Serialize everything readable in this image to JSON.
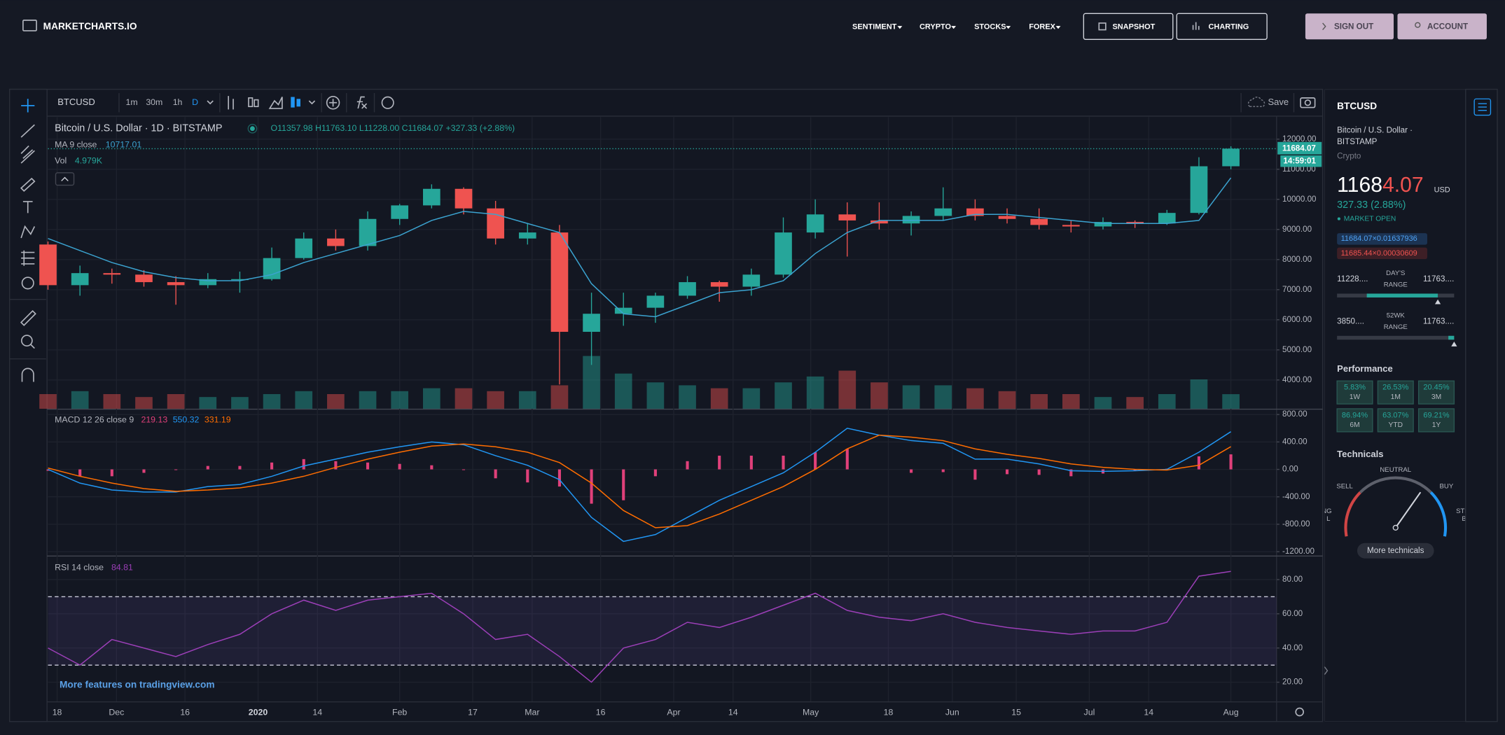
{
  "header": {
    "logo": "MARKETCHARTS.IO",
    "nav": [
      "SENTIMENT",
      "CRYPTO",
      "STOCKS",
      "FOREX"
    ],
    "buttons": [
      "SNAPSHOT",
      "CHARTING",
      "SIGN OUT",
      "ACCOUNT"
    ]
  },
  "toolbar": {
    "symbol": "BTCUSD",
    "intervals": [
      "1m",
      "30m",
      "1h",
      "D"
    ],
    "save": "Save"
  },
  "footer_link": "More features on tradingview.com",
  "chart_data": [
    {
      "type": "candlestick",
      "title": "Bitcoin / U.S. Dollar · 1D · BITSTAMP",
      "ohlc_label": "O11357.98 H11763.10 L11228.00 C11684.07 +327.33 (+2.88%)",
      "countdown": "14:59:01",
      "x": [
        "2019-11-16",
        "2019-11-23",
        "2019-11-30",
        "2019-12-07",
        "2019-12-14",
        "2019-12-21",
        "2019-12-28",
        "2020-01-04",
        "2020-01-11",
        "2020-01-18",
        "2020-01-25",
        "2020-02-01",
        "2020-02-08",
        "2020-02-15",
        "2020-02-22",
        "2020-02-29",
        "2020-03-07",
        "2020-03-14",
        "2020-03-21",
        "2020-03-28",
        "2020-04-04",
        "2020-04-11",
        "2020-04-18",
        "2020-04-25",
        "2020-05-02",
        "2020-05-09",
        "2020-05-16",
        "2020-05-23",
        "2020-05-30",
        "2020-06-06",
        "2020-06-13",
        "2020-06-20",
        "2020-06-27",
        "2020-07-04",
        "2020-07-11",
        "2020-07-18",
        "2020-07-25",
        "2020-08-01"
      ],
      "open": [
        8500,
        7150,
        7550,
        7500,
        7250,
        7150,
        7350,
        7350,
        8050,
        8700,
        8450,
        9350,
        9800,
        10350,
        9700,
        8700,
        8900,
        5600,
        6200,
        6400,
        6800,
        7250,
        7100,
        7500,
        8900,
        9500,
        9300,
        9200,
        9450,
        9700,
        9450,
        9350,
        9150,
        9100,
        9250,
        9200,
        9550,
        11100
      ],
      "high": [
        8600,
        7800,
        7700,
        7650,
        7450,
        7550,
        7600,
        8400,
        8900,
        9000,
        9600,
        9850,
        10500,
        10400,
        9950,
        9200,
        9150,
        6900,
        6900,
        6900,
        7450,
        7300,
        7700,
        9400,
        10000,
        9900,
        9900,
        9600,
        10400,
        10000,
        9700,
        9700,
        9300,
        9400,
        9300,
        9650,
        11400,
        11763.1
      ],
      "low": [
        7000,
        6800,
        7200,
        7100,
        6500,
        7050,
        6900,
        7300,
        8000,
        8300,
        8300,
        9150,
        9700,
        9500,
        8500,
        8500,
        3850,
        4500,
        5800,
        5900,
        6700,
        6600,
        6800,
        7400,
        8700,
        8100,
        9000,
        8800,
        9300,
        9300,
        9200,
        9000,
        8900,
        9000,
        9050,
        9150,
        9500,
        11000
      ],
      "close": [
        7150,
        7550,
        7500,
        7250,
        7150,
        7350,
        7350,
        8050,
        8700,
        8450,
        9350,
        9800,
        10350,
        9700,
        8700,
        8900,
        5600,
        6200,
        6400,
        6800,
        7250,
        7100,
        7500,
        8900,
        9500,
        9300,
        9200,
        9450,
        9700,
        9450,
        9350,
        9150,
        9100,
        9250,
        9200,
        9550,
        11100,
        11684.07
      ],
      "up_color": "#26a69a",
      "down_color": "#ef5350",
      "series": [
        {
          "name": "MA 9 close",
          "color": "#3ba3d0",
          "values": [
            8700,
            8300,
            7900,
            7600,
            7400,
            7300,
            7300,
            7500,
            7900,
            8200,
            8500,
            8800,
            9300,
            9600,
            9500,
            9200,
            8900,
            7200,
            6200,
            6100,
            6500,
            6900,
            7000,
            7300,
            8200,
            8900,
            9300,
            9300,
            9300,
            9500,
            9500,
            9400,
            9300,
            9200,
            9200,
            9200,
            9300,
            10717.01
          ]
        },
        {
          "name": "Vol",
          "values": [
            5,
            6,
            5,
            4,
            5,
            4,
            4,
            5,
            6,
            5,
            6,
            6,
            7,
            7,
            6,
            6,
            8,
            18,
            12,
            9,
            8,
            7,
            7,
            9,
            11,
            13,
            9,
            8,
            8,
            7,
            6,
            5,
            5,
            4,
            4,
            5,
            10,
            4.979
          ],
          "last_label": "4.979K"
        }
      ],
      "xlim": [
        "2019-11-16",
        "2020-08-11"
      ],
      "ylim": [
        3044,
        12733
      ],
      "yticks": [
        {
          "value": 4000,
          "label": "4000.00"
        },
        {
          "value": 5000,
          "label": "5000.00"
        },
        {
          "value": 6000,
          "label": "6000.00"
        },
        {
          "value": 7000,
          "label": "7000.00"
        },
        {
          "value": 8000,
          "label": "8000.00"
        },
        {
          "value": 9000,
          "label": "9000.00"
        },
        {
          "value": 10000,
          "label": "10000.00"
        },
        {
          "value": 11000,
          "label": "11000.00"
        },
        {
          "value": 12000,
          "label": "12000.00"
        }
      ],
      "xticks": [
        {
          "value": "2019-11-18",
          "label": "18"
        },
        {
          "value": "2019-12-01",
          "label": "Dec"
        },
        {
          "value": "2019-12-16",
          "label": "16"
        },
        {
          "value": "2020-01-01",
          "label": "2020"
        },
        {
          "value": "2020-01-14",
          "label": "14"
        },
        {
          "value": "2020-02-01",
          "label": "Feb"
        },
        {
          "value": "2020-02-17",
          "label": "17"
        },
        {
          "value": "2020-03-01",
          "label": "Mar"
        },
        {
          "value": "2020-03-16",
          "label": "16"
        },
        {
          "value": "2020-04-01",
          "label": "Apr"
        },
        {
          "value": "2020-04-14",
          "label": "14"
        },
        {
          "value": "2020-05-01",
          "label": "May"
        },
        {
          "value": "2020-05-18",
          "label": "18"
        },
        {
          "value": "2020-06-01",
          "label": "Jun"
        },
        {
          "value": "2020-06-15",
          "label": "15"
        },
        {
          "value": "2020-07-01",
          "label": "Jul"
        },
        {
          "value": "2020-07-14",
          "label": "14"
        },
        {
          "value": "2020-08-01",
          "label": "Aug"
        }
      ],
      "grid": true
    },
    {
      "type": "macd",
      "title": "MACD 12 26 close 9",
      "x": [
        "2019-11-16",
        "2019-11-23",
        "2019-11-30",
        "2019-12-07",
        "2019-12-14",
        "2019-12-21",
        "2019-12-28",
        "2020-01-04",
        "2020-01-11",
        "2020-01-18",
        "2020-01-25",
        "2020-02-01",
        "2020-02-08",
        "2020-02-15",
        "2020-02-22",
        "2020-02-29",
        "2020-03-07",
        "2020-03-14",
        "2020-03-21",
        "2020-03-28",
        "2020-04-04",
        "2020-04-11",
        "2020-04-18",
        "2020-04-25",
        "2020-05-02",
        "2020-05-09",
        "2020-05-16",
        "2020-05-23",
        "2020-05-30",
        "2020-06-06",
        "2020-06-13",
        "2020-06-20",
        "2020-06-27",
        "2020-07-04",
        "2020-07-11",
        "2020-07-18",
        "2020-07-25",
        "2020-08-01"
      ],
      "series": [
        {
          "color": "#e0407a",
          "values": [
            -20,
            -100,
            -100,
            -50,
            -10,
            50,
            50,
            100,
            150,
            120,
            100,
            80,
            60,
            -10,
            -130,
            -190,
            -250,
            -500,
            -450,
            -100,
            120,
            200,
            200,
            200,
            250,
            300,
            0,
            -50,
            -40,
            -150,
            -70,
            -80,
            -100,
            -60,
            -20,
            10,
            190,
            219.13
          ]
        },
        {
          "color": "#2196f3",
          "values": [
            0,
            -200,
            -300,
            -330,
            -330,
            -250,
            -220,
            -100,
            50,
            150,
            250,
            330,
            400,
            360,
            200,
            60,
            -150,
            -700,
            -1050,
            -950,
            -700,
            -450,
            -250,
            -50,
            250,
            600,
            500,
            420,
            380,
            150,
            150,
            80,
            -20,
            -30,
            -20,
            0,
            250,
            550.32
          ]
        },
        {
          "color": "#ff6d00",
          "values": [
            20,
            -100,
            -200,
            -280,
            -320,
            -300,
            -270,
            -200,
            -100,
            30,
            150,
            250,
            340,
            370,
            330,
            250,
            100,
            -200,
            -600,
            -850,
            -820,
            -650,
            -450,
            -250,
            0,
            300,
            500,
            470,
            420,
            300,
            220,
            160,
            80,
            30,
            0,
            -10,
            60,
            331.19
          ]
        }
      ],
      "xlim": [
        "2019-11-16",
        "2020-08-11"
      ],
      "ylim": [
        -1256,
        870
      ],
      "yticks": [
        {
          "value": -1200,
          "label": "-1200.00"
        },
        {
          "value": -800,
          "label": "-800.00"
        },
        {
          "value": -400,
          "label": "-400.00"
        },
        {
          "value": 0,
          "label": "0.00"
        },
        {
          "value": 400,
          "label": "400.00"
        },
        {
          "value": 800,
          "label": "800.00"
        }
      ],
      "grid": true
    },
    {
      "type": "rsi",
      "title": "RSI 14 close",
      "x": [
        "2019-11-16",
        "2019-11-23",
        "2019-11-30",
        "2019-12-07",
        "2019-12-14",
        "2019-12-21",
        "2019-12-28",
        "2020-01-04",
        "2020-01-11",
        "2020-01-18",
        "2020-01-25",
        "2020-02-01",
        "2020-02-08",
        "2020-02-15",
        "2020-02-22",
        "2020-02-29",
        "2020-03-07",
        "2020-03-14",
        "2020-03-21",
        "2020-03-28",
        "2020-04-04",
        "2020-04-11",
        "2020-04-18",
        "2020-04-25",
        "2020-05-02",
        "2020-05-09",
        "2020-05-16",
        "2020-05-23",
        "2020-05-30",
        "2020-06-06",
        "2020-06-13",
        "2020-06-20",
        "2020-06-27",
        "2020-07-04",
        "2020-07-11",
        "2020-07-18",
        "2020-07-25",
        "2020-08-01"
      ],
      "values": [
        40,
        30,
        45,
        40,
        35,
        42,
        48,
        60,
        68,
        62,
        68,
        70,
        72,
        60,
        45,
        48,
        35,
        20,
        40,
        45,
        55,
        52,
        58,
        65,
        72,
        62,
        58,
        56,
        60,
        55,
        52,
        50,
        48,
        50,
        50,
        55,
        82,
        84.81
      ],
      "color": "#9c3fb8",
      "bands": [
        30,
        70
      ],
      "xlim": [
        "2019-11-16",
        "2020-08-11"
      ],
      "ylim": [
        8.8,
        93.5
      ],
      "yticks": [
        {
          "value": 20,
          "label": "20.00"
        },
        {
          "value": 40,
          "label": "40.00"
        },
        {
          "value": 60,
          "label": "60.00"
        },
        {
          "value": 80,
          "label": "80.00"
        }
      ],
      "grid": true
    }
  ],
  "sidebar": {
    "symbol": "BTCUSD",
    "name": [
      "Bitcoin / U.S. Dollar ·",
      "BITSTAMP"
    ],
    "category": "Crypto",
    "price_main": "1168",
    "price_tail": "4.07",
    "currency": "USD",
    "change": "327.33 (2.88%)",
    "status": "MARKET OPEN",
    "bid": "11684.07×0.01637936",
    "ask": "11685.44×0.00030609",
    "days_range": {
      "low": "11228....",
      "label": [
        "DAY'S",
        "RANGE"
      ],
      "high": "11763...."
    },
    "year_range": {
      "low": "3850....",
      "label": [
        "52WK",
        "RANGE"
      ],
      "high": "11763...."
    },
    "performance": {
      "title": "Performance",
      "cells": [
        [
          "5.83%",
          "1W"
        ],
        [
          "26.53%",
          "1M"
        ],
        [
          "20.45%",
          "3M"
        ],
        [
          "86.94%",
          "6M"
        ],
        [
          "63.07%",
          "YTD"
        ],
        [
          "69.21%",
          "1Y"
        ]
      ]
    },
    "technicals": {
      "title": "Technicals",
      "sell": "SELL",
      "neutral": "NEUTRAL",
      "buy": "BUY",
      "left_edge": [
        "NG",
        "L"
      ],
      "right_edge": [
        "STR",
        "B"
      ],
      "button": "More technicals"
    }
  }
}
